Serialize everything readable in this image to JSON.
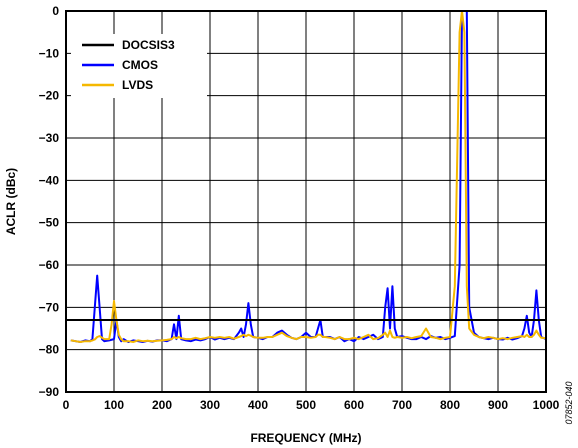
{
  "chart_data": {
    "type": "line",
    "xlabel": "FREQUENCY (MHz)",
    "ylabel": "ACLR (dBc)",
    "xlim": [
      0,
      1000
    ],
    "ylim": [
      -90,
      0
    ],
    "x_ticks": [
      0,
      100,
      200,
      300,
      400,
      500,
      600,
      700,
      800,
      900,
      1000
    ],
    "y_ticks": [
      0,
      -10,
      -20,
      -30,
      -40,
      -50,
      -60,
      -70,
      -80,
      -90
    ],
    "y_tick_labels": [
      "0",
      "−10",
      "−20",
      "−30",
      "−40",
      "−50",
      "−60",
      "−70",
      "−80",
      "−90"
    ],
    "grid": true,
    "legend_position": "top-left",
    "figure_id": "07852-040",
    "series": [
      {
        "name": "DOCSIS3",
        "color": "#000000",
        "x": [
          0,
          1000
        ],
        "y": [
          -73,
          -73
        ]
      },
      {
        "name": "CMOS",
        "color": "#0000ff",
        "x": [
          10,
          20,
          30,
          40,
          50,
          55,
          60,
          65,
          70,
          75,
          80,
          90,
          100,
          105,
          110,
          115,
          120,
          130,
          140,
          150,
          160,
          170,
          180,
          190,
          200,
          210,
          220,
          225,
          230,
          235,
          240,
          250,
          260,
          270,
          280,
          290,
          300,
          310,
          320,
          330,
          340,
          350,
          360,
          365,
          370,
          375,
          380,
          385,
          390,
          400,
          410,
          420,
          430,
          440,
          450,
          460,
          470,
          480,
          490,
          500,
          510,
          520,
          525,
          530,
          535,
          540,
          550,
          560,
          570,
          580,
          590,
          600,
          610,
          620,
          630,
          640,
          650,
          660,
          665,
          670,
          675,
          680,
          685,
          690,
          700,
          710,
          720,
          730,
          740,
          750,
          760,
          770,
          780,
          790,
          800,
          810,
          820,
          825,
          830,
          835,
          840,
          850,
          860,
          870,
          880,
          890,
          900,
          910,
          920,
          930,
          940,
          950,
          955,
          960,
          965,
          970,
          975,
          980,
          985,
          990,
          1000
        ],
        "y": [
          -77.8,
          -78,
          -78.2,
          -77.8,
          -78,
          -77.5,
          -70,
          -62.5,
          -70,
          -77.5,
          -78,
          -77.8,
          -77.5,
          -73,
          -77,
          -78,
          -77.5,
          -78.2,
          -77.8,
          -78,
          -78.2,
          -77.9,
          -78.1,
          -77.8,
          -77.8,
          -78,
          -77.5,
          -74,
          -77.5,
          -72,
          -77.5,
          -77.8,
          -78,
          -77.6,
          -77.8,
          -77.5,
          -77,
          -77.6,
          -77.2,
          -77.5,
          -77.2,
          -77.5,
          -76,
          -75,
          -77,
          -74,
          -69,
          -74,
          -77,
          -77.2,
          -77.5,
          -77,
          -77,
          -76,
          -75.5,
          -76.5,
          -77.2,
          -77.5,
          -77,
          -76,
          -77,
          -77,
          -75,
          -73,
          -77,
          -77,
          -77,
          -77.5,
          -77,
          -78,
          -77.5,
          -78,
          -77,
          -77.5,
          -77,
          -76.5,
          -77.5,
          -77,
          -70,
          -65.5,
          -75,
          -65,
          -75,
          -77,
          -76.8,
          -77.2,
          -77.5,
          -77.5,
          -77,
          -77.5,
          -76.8,
          -77.2,
          -77,
          -77.5,
          -77.2,
          -76.8,
          -60,
          0,
          0,
          0,
          -70,
          -76,
          -77,
          -77.3,
          -77.5,
          -77.2,
          -77.5,
          -77.6,
          -77.2,
          -77.6,
          -77.3,
          -76.8,
          -75,
          -72,
          -76,
          -77,
          -73,
          -66,
          -73,
          -77,
          -77.5
        ]
      },
      {
        "name": "LVDS",
        "color": "#f5b800",
        "x": [
          10,
          20,
          30,
          40,
          50,
          55,
          60,
          65,
          70,
          75,
          80,
          90,
          95,
          100,
          105,
          110,
          115,
          120,
          130,
          140,
          150,
          160,
          170,
          180,
          190,
          200,
          210,
          220,
          225,
          230,
          235,
          240,
          250,
          260,
          270,
          280,
          290,
          300,
          310,
          320,
          330,
          340,
          350,
          360,
          365,
          370,
          375,
          380,
          385,
          390,
          400,
          410,
          420,
          430,
          440,
          450,
          460,
          470,
          480,
          490,
          500,
          510,
          520,
          525,
          530,
          535,
          540,
          550,
          560,
          570,
          580,
          590,
          600,
          610,
          620,
          630,
          640,
          650,
          660,
          665,
          670,
          675,
          680,
          685,
          690,
          700,
          710,
          720,
          730,
          740,
          750,
          760,
          770,
          780,
          790,
          800,
          810,
          820,
          825,
          830,
          835,
          840,
          850,
          860,
          870,
          880,
          890,
          900,
          910,
          920,
          930,
          940,
          950,
          955,
          960,
          965,
          970,
          975,
          980,
          985,
          990,
          1000
        ],
        "y": [
          -77.8,
          -78,
          -78.2,
          -78,
          -78,
          -77.8,
          -77.6,
          -77,
          -76.8,
          -77.2,
          -77.5,
          -77.5,
          -74,
          -68.5,
          -73,
          -76.5,
          -77.5,
          -78,
          -78,
          -78.2,
          -77.8,
          -78,
          -77.9,
          -78,
          -77.9,
          -77.8,
          -77.7,
          -77.5,
          -77,
          -77.3,
          -77,
          -77.3,
          -77.5,
          -77.5,
          -77.2,
          -77.5,
          -77.3,
          -77,
          -77.2,
          -77,
          -77.2,
          -77,
          -77.4,
          -77,
          -76.8,
          -76.5,
          -76.8,
          -76.5,
          -76.7,
          -77,
          -77.2,
          -77.2,
          -77,
          -77,
          -76.5,
          -76,
          -76.8,
          -77.2,
          -77.5,
          -77,
          -77,
          -77.2,
          -77,
          -76.5,
          -76.5,
          -77,
          -77,
          -77.2,
          -77.5,
          -77,
          -77.5,
          -77.5,
          -77.2,
          -77.5,
          -77,
          -76.5,
          -77.5,
          -77.3,
          -76.5,
          -76,
          -77,
          -75.5,
          -77,
          -77.2,
          -77,
          -77.2,
          -77,
          -77.3,
          -77,
          -76.8,
          -75,
          -77,
          -77.2,
          -77.5,
          -77.2,
          -77,
          -65,
          -5,
          0,
          -5,
          -65,
          -75,
          -76.5,
          -77,
          -77.3,
          -77,
          -77.2,
          -77.5,
          -77.3,
          -77.5,
          -77.2,
          -77,
          -76.8,
          -77,
          -76.5,
          -77,
          -77,
          -76.5,
          -75.5,
          -76.5,
          -77.2,
          -77.3
        ]
      }
    ]
  }
}
